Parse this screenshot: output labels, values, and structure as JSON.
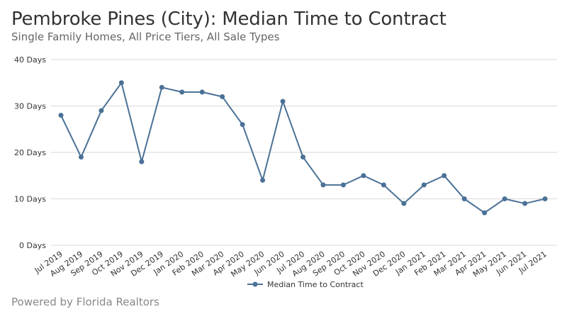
{
  "header": {
    "title": "Pembroke Pines (City): Median Time to Contract",
    "subtitle": "Single Family Homes, All Price Tiers, All Sale Types"
  },
  "footer": {
    "credit": "Powered by Florida Realtors"
  },
  "colors": {
    "series": "#4a7196",
    "grid": "#d9d9d9",
    "text": "#333333"
  },
  "chart_data": {
    "type": "line",
    "title": "Pembroke Pines (City): Median Time to Contract",
    "subtitle": "Single Family Homes, All Price Tiers, All Sale Types",
    "xlabel": "",
    "ylabel": "",
    "ylim": [
      0,
      40
    ],
    "yticks": [
      0,
      10,
      20,
      30,
      40
    ],
    "ytick_labels": [
      "0 Days",
      "10 Days",
      "20 Days",
      "30 Days",
      "40 Days"
    ],
    "grid": true,
    "legend_position": "bottom-center",
    "categories": [
      "Jul 2019",
      "Aug 2019",
      "Sep 2019",
      "Oct 2019",
      "Nov 2019",
      "Dec 2019",
      "Jan 2020",
      "Feb 2020",
      "Mar 2020",
      "Apr 2020",
      "May 2020",
      "Jun 2020",
      "Jul 2020",
      "Aug 2020",
      "Sep 2020",
      "Oct 2020",
      "Nov 2020",
      "Dec 2020",
      "Jan 2021",
      "Feb 2021",
      "Mar 2021",
      "Apr 2021",
      "May 2021",
      "Jun 2021",
      "Jul 2021"
    ],
    "series": [
      {
        "name": "Median Time to Contract",
        "values": [
          28,
          19,
          29,
          35,
          18,
          34,
          33,
          33,
          32,
          26,
          14,
          31,
          19,
          13,
          13,
          15,
          13,
          9,
          13,
          15,
          10,
          7,
          10,
          9,
          10
        ]
      }
    ]
  }
}
